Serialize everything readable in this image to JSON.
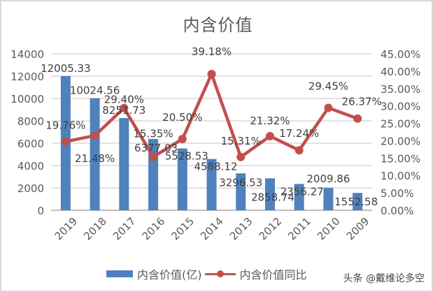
{
  "chart_data": {
    "type": "bar+line",
    "title": "内含价值",
    "categories": [
      "2019",
      "2018",
      "2017",
      "2016",
      "2015",
      "2014",
      "2013",
      "2012",
      "2011",
      "2010",
      "2009"
    ],
    "series": [
      {
        "name": "内含价值(亿)",
        "type": "bar",
        "axis": "left",
        "color": "#4f81bd",
        "values": [
          12005.33,
          10024.56,
          8251.73,
          6377.03,
          5528.53,
          4588.12,
          3296.53,
          2858.74,
          2356.27,
          2009.86,
          1552.58
        ],
        "labels": [
          "12005.33",
          "10024.56",
          "8251.73",
          "6377.03",
          "5528.53",
          "4588.12",
          "3296.53",
          "2858.74",
          "2356.27",
          "2009.86",
          "1552.58"
        ]
      },
      {
        "name": "内含价值同比",
        "type": "line",
        "axis": "right",
        "color": "#c0504d",
        "values": [
          19.76,
          21.48,
          29.4,
          15.35,
          20.5,
          39.18,
          15.31,
          21.32,
          17.24,
          29.45,
          26.37
        ],
        "labels": [
          "19.76%",
          "21.48%",
          "29.40%",
          "15.35%",
          "20.50%",
          "39.18%",
          "15.31%",
          "21.32%",
          "17.24%",
          "29.45%",
          "26.37%"
        ]
      }
    ],
    "y_left": {
      "ylim": [
        0,
        14000
      ],
      "ticks": [
        "0",
        "2000",
        "4000",
        "6000",
        "8000",
        "10000",
        "12000",
        "14000"
      ]
    },
    "y_right": {
      "ylim": [
        0,
        45
      ],
      "ticks": [
        "0.00%",
        "5.00%",
        "10.00%",
        "15.00%",
        "20.00%",
        "25.00%",
        "30.00%",
        "35.00%",
        "40.00%",
        "45.00%"
      ]
    },
    "xlabel": "",
    "ylabel": "",
    "grid": true,
    "legend_position": "bottom"
  },
  "legend": {
    "bar_label": "内含价值(亿)",
    "line_label": "内含价值同比"
  },
  "watermark": "头条 @戴维论多空"
}
